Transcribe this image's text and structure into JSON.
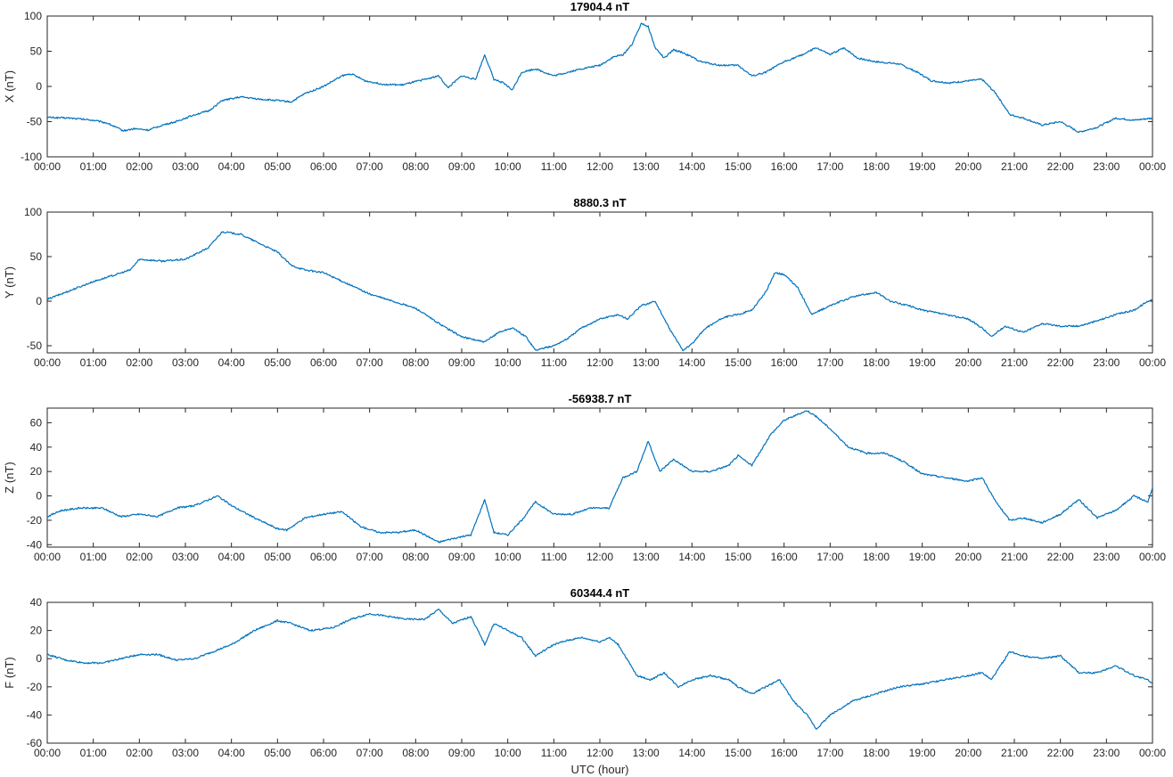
{
  "chart_data": [
    {
      "type": "line",
      "title": "17904.4 nT",
      "ylabel": "X (nT)",
      "xlabel": "",
      "ylim": [
        -100,
        100
      ],
      "yticks": [
        -100,
        -50,
        0,
        50,
        100
      ],
      "xlim": [
        0,
        24
      ],
      "x_tick_labels": [
        "00:00",
        "01:00",
        "02:00",
        "03:00",
        "04:00",
        "05:00",
        "06:00",
        "07:00",
        "08:00",
        "09:00",
        "10:00",
        "11:00",
        "12:00",
        "13:00",
        "14:00",
        "15:00",
        "16:00",
        "17:00",
        "18:00",
        "19:00",
        "20:00",
        "21:00",
        "22:00",
        "23:00",
        "00:00"
      ],
      "series": [
        {
          "color": "#0072BD",
          "x": [
            0,
            0.5,
            1,
            1.3,
            1.65,
            1.9,
            2.2,
            2.5,
            2.8,
            3.2,
            3.5,
            3.8,
            4.2,
            4.6,
            5,
            5.3,
            5.6,
            6,
            6.4,
            6.6,
            6.9,
            7.3,
            7.7,
            8.2,
            8.5,
            8.7,
            9,
            9.3,
            9.5,
            9.7,
            9.9,
            10.1,
            10.3,
            10.6,
            11,
            11.3,
            11.6,
            12,
            12.3,
            12.5,
            12.7,
            12.9,
            13.05,
            13.2,
            13.4,
            13.6,
            13.8,
            14.2,
            14.6,
            15,
            15.3,
            15.6,
            16,
            16.4,
            16.7,
            17,
            17.3,
            17.6,
            18,
            18.5,
            18.9,
            19.2,
            19.6,
            20,
            20.3,
            20.6,
            20.9,
            21.2,
            21.6,
            22,
            22.4,
            22.8,
            23.2,
            23.6,
            24
          ],
          "y": [
            -44,
            -45,
            -48,
            -52,
            -63,
            -60,
            -62,
            -55,
            -50,
            -40,
            -35,
            -20,
            -15,
            -18,
            -20,
            -22,
            -10,
            0,
            15,
            18,
            8,
            3,
            2,
            10,
            15,
            -2,
            15,
            10,
            45,
            10,
            5,
            -5,
            20,
            25,
            15,
            20,
            25,
            30,
            42,
            45,
            60,
            90,
            85,
            55,
            40,
            52,
            48,
            35,
            30,
            30,
            15,
            20,
            35,
            45,
            55,
            45,
            55,
            40,
            35,
            32,
            20,
            8,
            5,
            8,
            10,
            -10,
            -40,
            -45,
            -55,
            -50,
            -65,
            -58,
            -45,
            -48,
            -45
          ]
        }
      ]
    },
    {
      "type": "line",
      "title": "8880.3 nT",
      "ylabel": "Y (nT)",
      "xlabel": "",
      "ylim": [
        -58,
        100
      ],
      "yticks": [
        -50,
        0,
        50,
        100
      ],
      "xlim": [
        0,
        24
      ],
      "x_tick_labels": [
        "00:00",
        "01:00",
        "02:00",
        "03:00",
        "04:00",
        "05:00",
        "06:00",
        "07:00",
        "08:00",
        "09:00",
        "10:00",
        "11:00",
        "12:00",
        "13:00",
        "14:00",
        "15:00",
        "16:00",
        "17:00",
        "18:00",
        "19:00",
        "20:00",
        "21:00",
        "22:00",
        "23:00",
        "00:00"
      ],
      "series": [
        {
          "color": "#0072BD",
          "x": [
            0,
            0.5,
            1,
            1.5,
            1.8,
            2,
            2.5,
            3,
            3.5,
            3.8,
            4.2,
            4.6,
            5,
            5.3,
            5.6,
            6,
            6.5,
            7,
            7.5,
            8,
            8.5,
            9,
            9.5,
            9.8,
            10.1,
            10.4,
            10.6,
            11,
            11.3,
            11.6,
            12,
            12.4,
            12.6,
            12.9,
            13.2,
            13.5,
            13.8,
            14,
            14.3,
            14.7,
            15,
            15.3,
            15.6,
            15.8,
            16,
            16.3,
            16.6,
            17,
            17.5,
            18,
            18.3,
            18.7,
            19,
            19.5,
            20,
            20.3,
            20.5,
            20.8,
            21.2,
            21.6,
            22,
            22.4,
            22.8,
            23.2,
            23.6,
            23.9,
            24
          ],
          "y": [
            2,
            12,
            22,
            30,
            35,
            47,
            45,
            47,
            60,
            78,
            75,
            65,
            55,
            40,
            35,
            32,
            20,
            8,
            0,
            -8,
            -25,
            -40,
            -46,
            -35,
            -30,
            -40,
            -55,
            -50,
            -42,
            -30,
            -20,
            -15,
            -20,
            -5,
            0,
            -30,
            -55,
            -48,
            -30,
            -18,
            -15,
            -10,
            10,
            32,
            30,
            15,
            -15,
            -5,
            5,
            10,
            0,
            -5,
            -10,
            -15,
            -20,
            -30,
            -40,
            -28,
            -35,
            -25,
            -28,
            -28,
            -22,
            -15,
            -10,
            0,
            2
          ]
        }
      ]
    },
    {
      "type": "line",
      "title": "-56938.7 nT",
      "ylabel": "Z (nT)",
      "xlabel": "",
      "ylim": [
        -42,
        72
      ],
      "yticks": [
        -40,
        -20,
        0,
        20,
        40,
        60
      ],
      "xlim": [
        0,
        24
      ],
      "x_tick_labels": [
        "00:00",
        "01:00",
        "02:00",
        "03:00",
        "04:00",
        "05:00",
        "06:00",
        "07:00",
        "08:00",
        "09:00",
        "10:00",
        "11:00",
        "12:00",
        "13:00",
        "14:00",
        "15:00",
        "16:00",
        "17:00",
        "18:00",
        "19:00",
        "20:00",
        "21:00",
        "22:00",
        "23:00",
        "00:00"
      ],
      "series": [
        {
          "color": "#0072BD",
          "x": [
            0,
            0.3,
            0.7,
            1.2,
            1.6,
            2,
            2.4,
            2.8,
            3.2,
            3.7,
            4,
            4.5,
            5,
            5.2,
            5.6,
            6,
            6.4,
            6.8,
            7.2,
            7.6,
            8,
            8.5,
            8.8,
            9.2,
            9.5,
            9.7,
            10,
            10.3,
            10.6,
            11,
            11.4,
            11.8,
            12.2,
            12.5,
            12.8,
            13.05,
            13.3,
            13.6,
            14,
            14.4,
            14.8,
            15,
            15.3,
            15.7,
            16,
            16.5,
            16.7,
            17,
            17.4,
            17.8,
            18.2,
            18.6,
            19,
            19.5,
            20,
            20.3,
            20.6,
            20.9,
            21.2,
            21.6,
            22,
            22.4,
            22.8,
            23.2,
            23.6,
            23.9,
            24
          ],
          "y": [
            -17,
            -12,
            -10,
            -10,
            -17,
            -15,
            -17,
            -10,
            -8,
            0,
            -8,
            -18,
            -27,
            -28,
            -18,
            -15,
            -13,
            -25,
            -30,
            -30,
            -28,
            -38,
            -35,
            -32,
            -3,
            -30,
            -32,
            -20,
            -5,
            -15,
            -15,
            -10,
            -10,
            15,
            20,
            45,
            20,
            30,
            20,
            20,
            25,
            33,
            25,
            50,
            62,
            70,
            65,
            55,
            40,
            35,
            35,
            28,
            18,
            15,
            12,
            15,
            -5,
            -20,
            -18,
            -22,
            -15,
            -3,
            -18,
            -12,
            0,
            -5,
            7
          ]
        }
      ]
    },
    {
      "type": "line",
      "title": "60344.4 nT",
      "ylabel": "F (nT)",
      "xlabel": "UTC (hour)",
      "ylim": [
        -60,
        40
      ],
      "yticks": [
        -60,
        -40,
        -20,
        0,
        20,
        40
      ],
      "xlim": [
        0,
        24
      ],
      "x_tick_labels": [
        "00:00",
        "01:00",
        "02:00",
        "03:00",
        "04:00",
        "05:00",
        "06:00",
        "07:00",
        "08:00",
        "09:00",
        "10:00",
        "11:00",
        "12:00",
        "13:00",
        "14:00",
        "15:00",
        "16:00",
        "17:00",
        "18:00",
        "19:00",
        "20:00",
        "21:00",
        "22:00",
        "23:00",
        "00:00"
      ],
      "series": [
        {
          "color": "#0072BD",
          "x": [
            0,
            0.4,
            0.8,
            1.2,
            1.6,
            2,
            2.4,
            2.8,
            3.2,
            3.6,
            4,
            4.5,
            5,
            5.3,
            5.7,
            6.2,
            6.6,
            7,
            7.4,
            7.8,
            8.2,
            8.5,
            8.8,
            9.2,
            9.5,
            9.7,
            10,
            10.3,
            10.6,
            11,
            11.3,
            11.6,
            12,
            12.2,
            12.4,
            12.8,
            13.1,
            13.4,
            13.7,
            14,
            14.4,
            14.8,
            15,
            15.3,
            15.6,
            15.9,
            16.2,
            16.5,
            16.7,
            17,
            17.5,
            18,
            18.5,
            19,
            19.5,
            20,
            20.3,
            20.5,
            20.9,
            21.2,
            21.6,
            22,
            22.4,
            22.8,
            23.2,
            23.6,
            23.9,
            24
          ],
          "y": [
            3,
            -1,
            -3,
            -3,
            0,
            3,
            3,
            -1,
            0,
            5,
            10,
            20,
            27,
            25,
            20,
            22,
            28,
            32,
            30,
            28,
            28,
            35,
            25,
            30,
            10,
            25,
            20,
            15,
            2,
            10,
            13,
            15,
            12,
            15,
            10,
            -12,
            -15,
            -10,
            -20,
            -15,
            -12,
            -15,
            -20,
            -25,
            -20,
            -15,
            -30,
            -40,
            -50,
            -40,
            -30,
            -25,
            -20,
            -18,
            -15,
            -12,
            -10,
            -15,
            5,
            2,
            0,
            2,
            -10,
            -10,
            -5,
            -12,
            -15,
            -18
          ]
        }
      ]
    }
  ]
}
